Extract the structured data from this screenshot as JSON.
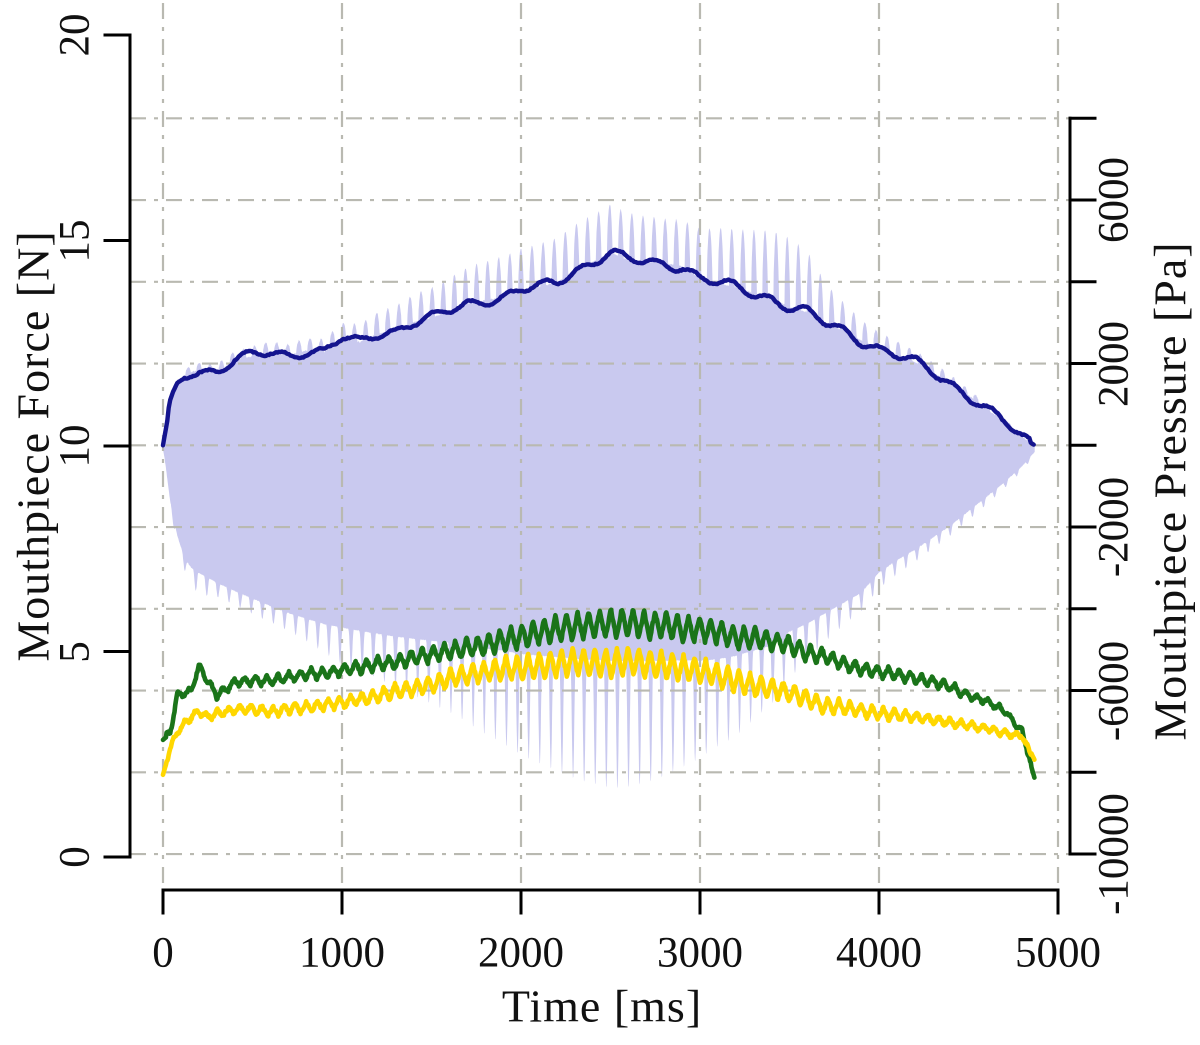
{
  "chart_data": {
    "type": "line",
    "title": "",
    "grid": {
      "style": "dash-dot",
      "color": "#b9b9b1",
      "on": true
    },
    "axes": {
      "left": {
        "label": "Mouthpiece Force [N]",
        "tick_labels": [
          "0",
          "5",
          "10",
          "15",
          "20"
        ],
        "tick_values": [
          0,
          5,
          10,
          15,
          20
        ],
        "lim": [
          0,
          20
        ]
      },
      "right": {
        "label": "Mouthpiece Pressure [Pa]",
        "tick_labels": [
          "6000",
          "2000",
          "-2000",
          "-6000",
          "-10000"
        ],
        "labeled_tick_values": [
          6000,
          2000,
          -2000,
          -6000,
          -10000
        ],
        "all_tick_values": [
          8000,
          6000,
          4000,
          2000,
          0,
          -2000,
          -4000,
          -6000,
          -8000,
          -10000
        ],
        "lim": [
          -10000,
          8000
        ]
      },
      "bottom": {
        "label": "Time [ms]",
        "tick_labels": [
          "0",
          "1000",
          "2000",
          "3000",
          "4000",
          "5000"
        ],
        "tick_values": [
          0,
          1000,
          2000,
          3000,
          4000,
          5000
        ],
        "lim": [
          0,
          5000
        ]
      }
    },
    "vibrato_period_ms": 62,
    "t_ms": [
      0,
      40,
      80,
      120,
      160,
      200,
      250,
      300,
      400,
      500,
      600,
      700,
      800,
      900,
      1000,
      1100,
      1200,
      1300,
      1400,
      1500,
      1600,
      1700,
      1800,
      1900,
      2000,
      2100,
      2200,
      2300,
      2400,
      2500,
      2600,
      2700,
      2800,
      2900,
      3000,
      3100,
      3200,
      3300,
      3400,
      3500,
      3600,
      3700,
      3800,
      3900,
      4000,
      4100,
      4200,
      4300,
      4400,
      4500,
      4600,
      4700,
      4800,
      4870
    ],
    "series": [
      {
        "name": "mouthpiece-pressure-waveform",
        "axis": "right",
        "style": "filled-area",
        "color": "#c9c9ef",
        "upper_envelope_pa": [
          0,
          1000,
          1450,
          1700,
          1800,
          1840,
          1810,
          1790,
          2080,
          2180,
          2280,
          2200,
          2320,
          2280,
          2620,
          2520,
          2740,
          2810,
          3010,
          3110,
          3280,
          3460,
          3550,
          3620,
          3790,
          3870,
          3990,
          4280,
          4480,
          4720,
          4530,
          4480,
          4450,
          4380,
          4090,
          3960,
          3870,
          3720,
          3600,
          3380,
          3250,
          2980,
          2810,
          2570,
          2370,
          2200,
          2030,
          1790,
          1520,
          1220,
          900,
          560,
          200,
          0
        ],
        "upper_spike_pa": [
          100,
          120,
          150,
          150,
          150,
          180,
          180,
          200,
          220,
          250,
          250,
          280,
          300,
          320,
          380,
          450,
          520,
          600,
          680,
          750,
          820,
          900,
          950,
          1000,
          1020,
          1050,
          1080,
          1120,
          1150,
          1180,
          1150,
          1120,
          1100,
          1150,
          1200,
          1350,
          1420,
          1550,
          1650,
          1700,
          1500,
          1000,
          700,
          500,
          400,
          350,
          300,
          250,
          200,
          150,
          120,
          100,
          80,
          50
        ],
        "lower_envelope_pa": [
          0,
          -1350,
          -2200,
          -2750,
          -3000,
          -3110,
          -3230,
          -3350,
          -3550,
          -3740,
          -3920,
          -4090,
          -4230,
          -4360,
          -4450,
          -4530,
          -4600,
          -4670,
          -4720,
          -4770,
          -4820,
          -4890,
          -4970,
          -5010,
          -5090,
          -5130,
          -5170,
          -5210,
          -5240,
          -5260,
          -5270,
          -5270,
          -5260,
          -5250,
          -5260,
          -5220,
          -5140,
          -5010,
          -4890,
          -4550,
          -4350,
          -4100,
          -3850,
          -3600,
          -3100,
          -2800,
          -2550,
          -2250,
          -1950,
          -1600,
          -1250,
          -900,
          -500,
          -150
        ],
        "lower_spike_pa": [
          100,
          200,
          250,
          300,
          400,
          550,
          450,
          350,
          350,
          380,
          400,
          450,
          550,
          700,
          900,
          1000,
          1100,
          1250,
          1400,
          1550,
          1700,
          1900,
          2100,
          2300,
          2500,
          2650,
          2800,
          2950,
          3050,
          3150,
          3100,
          3000,
          2850,
          2650,
          2400,
          2150,
          2000,
          1700,
          1450,
          1150,
          900,
          700,
          550,
          450,
          400,
          350,
          300,
          280,
          250,
          220,
          200,
          150,
          120,
          80
        ]
      },
      {
        "name": "pressure-envelope-line",
        "axis": "right",
        "style": "line",
        "color": "#14148e",
        "values_pa": [
          0,
          1000,
          1450,
          1700,
          1800,
          1840,
          1810,
          1790,
          2080,
          2180,
          2280,
          2200,
          2320,
          2280,
          2620,
          2520,
          2740,
          2810,
          3010,
          3110,
          3280,
          3460,
          3550,
          3620,
          3790,
          3870,
          3990,
          4280,
          4480,
          4720,
          4530,
          4480,
          4450,
          4380,
          4090,
          3960,
          3870,
          3720,
          3600,
          3380,
          3250,
          2980,
          2810,
          2570,
          2370,
          2200,
          2030,
          1790,
          1520,
          1220,
          900,
          560,
          200,
          0
        ]
      },
      {
        "name": "mouthpiece-force-upper",
        "axis": "left",
        "style": "line",
        "color": "#1a7419",
        "values_n": [
          2.85,
          3.0,
          3.9,
          3.95,
          4.05,
          4.65,
          4.3,
          3.95,
          4.3,
          4.35,
          4.35,
          4.4,
          4.45,
          4.45,
          4.5,
          4.55,
          4.65,
          4.7,
          4.85,
          4.95,
          5.05,
          5.15,
          5.2,
          5.3,
          5.35,
          5.45,
          5.5,
          5.55,
          5.6,
          5.65,
          5.7,
          5.65,
          5.7,
          5.6,
          5.6,
          5.5,
          5.35,
          5.3,
          5.2,
          5.1,
          4.9,
          4.85,
          4.7,
          4.6,
          4.55,
          4.5,
          4.4,
          4.3,
          4.15,
          3.9,
          3.75,
          3.5,
          3.0,
          1.9
        ],
        "osc_amp_n": [
          0.06,
          0.06,
          0.07,
          0.07,
          0.08,
          0.08,
          0.08,
          0.08,
          0.1,
          0.12,
          0.12,
          0.12,
          0.13,
          0.14,
          0.15,
          0.16,
          0.17,
          0.18,
          0.19,
          0.2,
          0.22,
          0.24,
          0.26,
          0.28,
          0.3,
          0.31,
          0.32,
          0.33,
          0.34,
          0.35,
          0.34,
          0.34,
          0.33,
          0.32,
          0.3,
          0.29,
          0.28,
          0.26,
          0.25,
          0.24,
          0.22,
          0.2,
          0.18,
          0.16,
          0.15,
          0.14,
          0.13,
          0.12,
          0.11,
          0.1,
          0.09,
          0.08,
          0.07,
          0.06
        ]
      },
      {
        "name": "mouthpiece-force-lower",
        "axis": "left",
        "style": "line",
        "color": "#ffd700",
        "values_n": [
          2.0,
          2.6,
          3.0,
          3.2,
          3.35,
          3.5,
          3.35,
          3.45,
          3.55,
          3.6,
          3.55,
          3.65,
          3.7,
          3.75,
          3.8,
          3.85,
          3.9,
          4.0,
          4.05,
          4.15,
          4.3,
          4.4,
          4.5,
          4.6,
          4.65,
          4.7,
          4.75,
          4.8,
          4.75,
          4.7,
          4.75,
          4.65,
          4.6,
          4.55,
          4.5,
          4.4,
          4.3,
          4.2,
          4.15,
          4.05,
          3.9,
          3.7,
          3.65,
          3.55,
          3.45,
          3.4,
          3.35,
          3.3,
          3.25,
          3.2,
          3.15,
          3.05,
          3.0,
          2.35
        ],
        "osc_amp_n": [
          0.06,
          0.06,
          0.07,
          0.07,
          0.08,
          0.08,
          0.08,
          0.08,
          0.1,
          0.12,
          0.12,
          0.12,
          0.13,
          0.14,
          0.15,
          0.16,
          0.17,
          0.18,
          0.19,
          0.2,
          0.22,
          0.24,
          0.26,
          0.28,
          0.3,
          0.31,
          0.32,
          0.33,
          0.34,
          0.35,
          0.34,
          0.34,
          0.33,
          0.32,
          0.3,
          0.29,
          0.28,
          0.26,
          0.25,
          0.24,
          0.22,
          0.2,
          0.18,
          0.16,
          0.15,
          0.14,
          0.13,
          0.12,
          0.11,
          0.1,
          0.09,
          0.08,
          0.07,
          0.06
        ]
      }
    ]
  }
}
